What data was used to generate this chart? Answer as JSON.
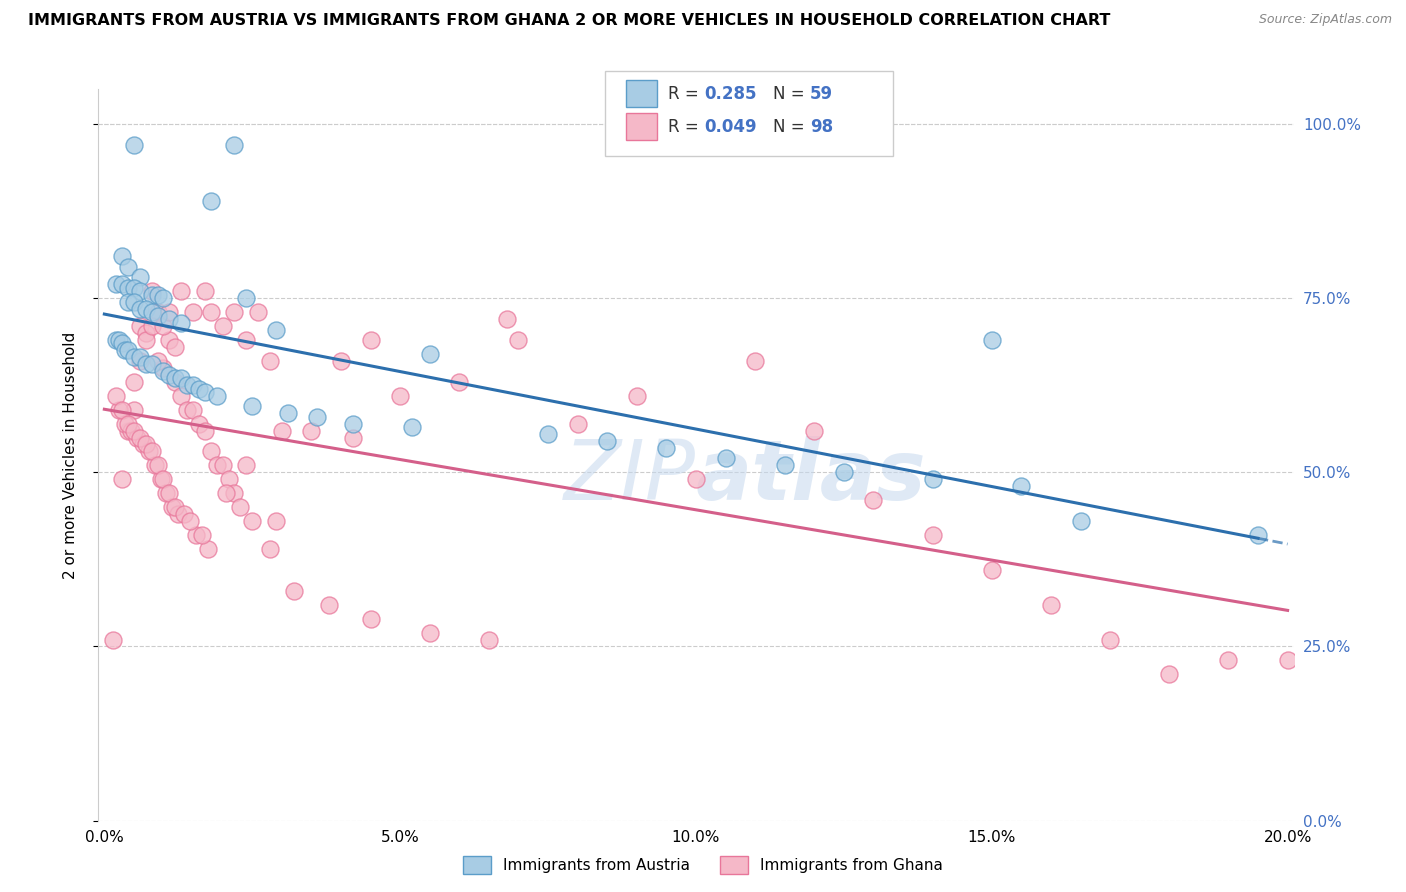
{
  "title": "IMMIGRANTS FROM AUSTRIA VS IMMIGRANTS FROM GHANA 2 OR MORE VEHICLES IN HOUSEHOLD CORRELATION CHART",
  "source": "Source: ZipAtlas.com",
  "ylabel_label": "2 or more Vehicles in Household",
  "legend_austria": "Immigrants from Austria",
  "legend_ghana": "Immigrants from Ghana",
  "R_austria": 0.285,
  "N_austria": 59,
  "R_ghana": 0.049,
  "N_ghana": 98,
  "color_austria_fill": "#a8cce4",
  "color_austria_edge": "#5b9dc9",
  "color_ghana_fill": "#f5b8c8",
  "color_ghana_edge": "#e8769a",
  "color_austria_line": "#2c6fad",
  "color_ghana_line": "#d45f8a",
  "watermark_color": "#c5d8ee",
  "right_axis_color": "#4472c4",
  "austria_x": [
    0.5,
    2.2,
    1.8,
    0.3,
    0.4,
    0.6,
    0.2,
    0.3,
    0.4,
    0.5,
    0.6,
    0.8,
    0.9,
    1.0,
    2.4,
    0.4,
    0.5,
    0.6,
    0.7,
    0.8,
    0.9,
    1.1,
    1.3,
    2.9,
    0.2,
    0.25,
    0.3,
    0.35,
    0.4,
    0.5,
    0.6,
    0.7,
    0.8,
    1.0,
    1.1,
    1.2,
    1.3,
    1.4,
    1.5,
    1.6,
    1.7,
    1.9,
    2.5,
    3.1,
    3.6,
    4.2,
    5.2,
    5.5,
    7.5,
    8.5,
    9.5,
    10.5,
    11.5,
    12.5,
    14.0,
    15.5,
    15.0,
    16.5,
    19.5
  ],
  "austria_y": [
    97.0,
    97.0,
    89.0,
    81.0,
    79.5,
    78.0,
    77.0,
    77.0,
    76.5,
    76.5,
    76.0,
    75.5,
    75.5,
    75.0,
    75.0,
    74.5,
    74.5,
    73.5,
    73.5,
    73.0,
    72.5,
    72.0,
    71.5,
    70.5,
    69.0,
    69.0,
    68.5,
    67.5,
    67.5,
    66.5,
    66.5,
    65.5,
    65.5,
    64.5,
    64.0,
    63.5,
    63.5,
    62.5,
    62.5,
    62.0,
    61.5,
    61.0,
    59.5,
    58.5,
    58.0,
    57.0,
    56.5,
    67.0,
    55.5,
    54.5,
    53.5,
    52.0,
    51.0,
    50.0,
    49.0,
    48.0,
    69.0,
    43.0,
    41.0
  ],
  "ghana_x": [
    0.15,
    0.5,
    0.6,
    0.7,
    0.8,
    0.9,
    1.0,
    1.1,
    1.2,
    1.3,
    1.5,
    1.7,
    1.8,
    2.0,
    2.2,
    2.4,
    2.6,
    2.8,
    3.0,
    3.5,
    4.0,
    4.5,
    5.0,
    6.0,
    7.0,
    8.0,
    9.0,
    10.0,
    11.0,
    12.0,
    13.0,
    14.0,
    15.0,
    16.0,
    17.0,
    18.0,
    19.0,
    20.0,
    0.3,
    0.4,
    0.5,
    0.6,
    0.7,
    0.8,
    0.9,
    1.0,
    1.1,
    1.2,
    1.3,
    1.4,
    1.5,
    1.6,
    1.7,
    1.8,
    1.9,
    2.0,
    2.1,
    2.2,
    2.5,
    2.8,
    3.2,
    3.8,
    4.5,
    5.5,
    6.5,
    0.25,
    0.35,
    0.45,
    0.55,
    0.65,
    0.75,
    0.85,
    0.95,
    1.05,
    1.15,
    1.25,
    1.55,
    1.75,
    2.3,
    4.2,
    6.8,
    0.2,
    0.3,
    0.4,
    0.5,
    0.6,
    0.7,
    0.8,
    0.9,
    1.0,
    1.1,
    1.2,
    1.35,
    1.45,
    1.65,
    2.05,
    2.4,
    2.9
  ],
  "ghana_y": [
    26.0,
    59.0,
    71.0,
    70.0,
    76.0,
    73.0,
    65.0,
    69.0,
    68.0,
    76.0,
    73.0,
    76.0,
    73.0,
    71.0,
    73.0,
    69.0,
    73.0,
    66.0,
    56.0,
    56.0,
    66.0,
    69.0,
    61.0,
    63.0,
    69.0,
    57.0,
    61.0,
    49.0,
    66.0,
    56.0,
    46.0,
    41.0,
    36.0,
    31.0,
    26.0,
    21.0,
    23.0,
    23.0,
    49.0,
    56.0,
    63.0,
    66.0,
    69.0,
    71.0,
    66.0,
    71.0,
    73.0,
    63.0,
    61.0,
    59.0,
    59.0,
    57.0,
    56.0,
    53.0,
    51.0,
    51.0,
    49.0,
    47.0,
    43.0,
    39.0,
    33.0,
    31.0,
    29.0,
    27.0,
    26.0,
    59.0,
    57.0,
    56.0,
    55.0,
    54.0,
    53.0,
    51.0,
    49.0,
    47.0,
    45.0,
    44.0,
    41.0,
    39.0,
    45.0,
    55.0,
    72.0,
    61.0,
    59.0,
    57.0,
    56.0,
    55.0,
    54.0,
    53.0,
    51.0,
    49.0,
    47.0,
    45.0,
    44.0,
    43.0,
    41.0,
    47.0,
    51.0,
    43.0
  ]
}
